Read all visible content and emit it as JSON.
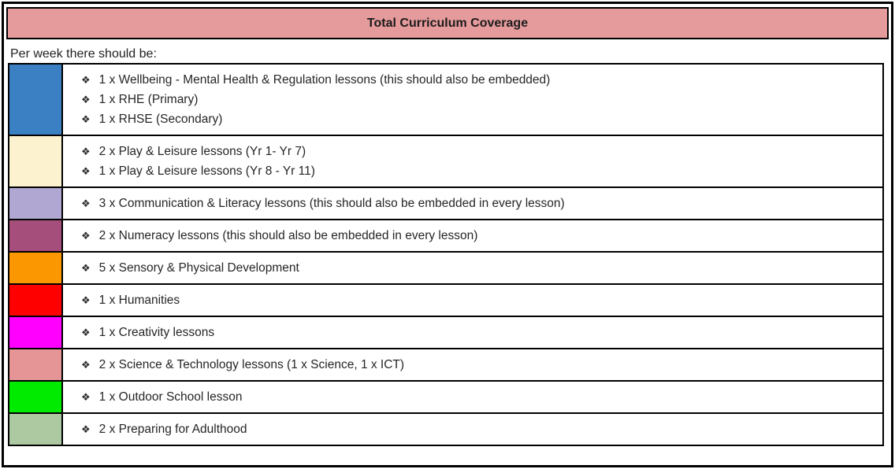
{
  "header": {
    "title": "Total Curriculum Coverage",
    "bg_color": "#E59A9B"
  },
  "intro_text": "Per week there should be:",
  "bullet_icon": "❖",
  "rows": [
    {
      "name": "wellbeing",
      "color": "#3C80C4",
      "items": [
        "1 x Wellbeing - Mental Health & Regulation lessons (this should also be embedded)",
        "1 x RHE (Primary)",
        "1 x RHSE (Secondary)"
      ]
    },
    {
      "name": "play-leisure",
      "color": "#FCF2CF",
      "items": [
        "2 x Play & Leisure lessons (Yr 1- Yr 7)",
        "1 x Play & Leisure lessons (Yr 8 - Yr 11)"
      ]
    },
    {
      "name": "communication-literacy",
      "color": "#B0A7D2",
      "items": [
        "3 x Communication & Literacy lessons (this should also be embedded in every lesson)"
      ]
    },
    {
      "name": "numeracy",
      "color": "#A54E7B",
      "items": [
        "2 x Numeracy lessons (this should also be embedded in every lesson)"
      ]
    },
    {
      "name": "sensory-physical",
      "color": "#FB9700",
      "items": [
        "5 x Sensory & Physical Development"
      ]
    },
    {
      "name": "humanities",
      "color": "#FE0000",
      "items": [
        "1 x Humanities"
      ]
    },
    {
      "name": "creativity",
      "color": "#FF00FF",
      "items": [
        "1 x Creativity lessons"
      ]
    },
    {
      "name": "science-technology",
      "color": "#E69596",
      "items": [
        "2 x Science & Technology lessons (1 x Science, 1 x ICT)"
      ]
    },
    {
      "name": "outdoor-school",
      "color": "#00EB00",
      "items": [
        "1 x Outdoor School lesson"
      ]
    },
    {
      "name": "preparing-adulthood",
      "color": "#ADC9A2",
      "items": [
        "2 x Preparing for Adulthood"
      ]
    }
  ]
}
